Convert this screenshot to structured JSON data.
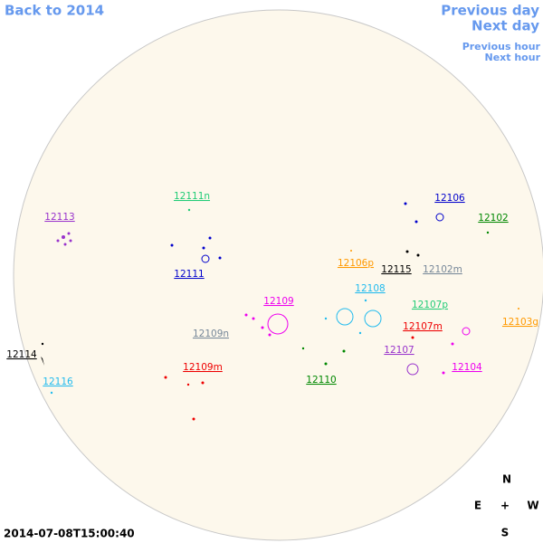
{
  "nav": {
    "back": "Back to 2014",
    "previous_day": "Previous day",
    "next_day": "Next day",
    "previous_hour": "Previous hour",
    "next_hour": "Next hour"
  },
  "regions": [
    {
      "label": "12113",
      "color": "#9933cc"
    },
    {
      "label": "12111n",
      "color": "#22cc77"
    },
    {
      "label": "12111",
      "color": "#0000cc"
    },
    {
      "label": "12106",
      "color": "#0000cc"
    },
    {
      "label": "12102",
      "color": "#008800"
    },
    {
      "label": "12106p",
      "color": "#ff9900"
    },
    {
      "label": "12115",
      "color": "#000000"
    },
    {
      "label": "12102m",
      "color": "#778899"
    },
    {
      "label": "12108",
      "color": "#22bbee"
    },
    {
      "label": "12109",
      "color": "#ee00ee"
    },
    {
      "label": "12107p",
      "color": "#22cc77"
    },
    {
      "label": "12107m",
      "color": "#ee0000"
    },
    {
      "label": "12103g",
      "color": "#ff9900"
    },
    {
      "label": "12109n",
      "color": "#778899"
    },
    {
      "label": "12107",
      "color": "#9933cc"
    },
    {
      "label": "12114",
      "color": "#000000"
    },
    {
      "label": "12104",
      "color": "#ee00ee"
    },
    {
      "label": "12109m",
      "color": "#ee0000"
    },
    {
      "label": "12110",
      "color": "#008800"
    },
    {
      "label": "12116",
      "color": "#22bbee"
    }
  ],
  "compass": {
    "n": "N",
    "e": "E",
    "center": "+",
    "w": "W",
    "s": "S"
  },
  "timestamp": "2014-07-08T15:00:40"
}
